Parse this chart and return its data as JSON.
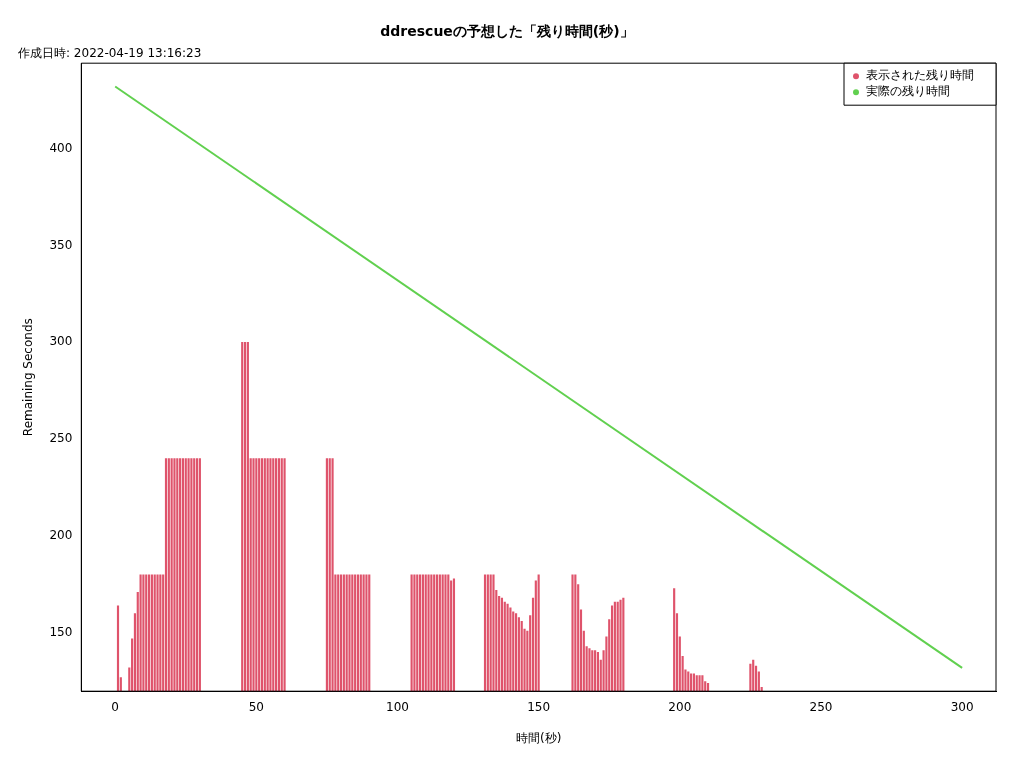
{
  "chart_data": {
    "type": "bar",
    "title": "ddrescueの予想した「残り時間(秒)」",
    "subtitle": "作成日時: 2022-04-19 13:16:23",
    "xlabel": "時間(秒)",
    "ylabel": "Remaining Seconds",
    "xlim": [
      -12,
      312
    ],
    "xticks": [
      0,
      50,
      100,
      150,
      200,
      250,
      300
    ],
    "ylim": [
      120,
      444
    ],
    "yticks": [
      150,
      200,
      250,
      300,
      350,
      400
    ],
    "grid": false,
    "legend": "top right",
    "series": [
      {
        "name": "表示された残り時間",
        "color": "#df536b",
        "x": [
          1,
          2,
          5,
          6,
          7,
          8,
          9,
          10,
          11,
          12,
          13,
          14,
          15,
          16,
          17,
          18,
          19,
          20,
          21,
          22,
          23,
          24,
          25,
          26,
          27,
          28,
          29,
          30,
          45,
          46,
          47,
          48,
          49,
          50,
          51,
          52,
          53,
          54,
          55,
          56,
          57,
          58,
          59,
          60,
          75,
          76,
          77,
          78,
          79,
          80,
          81,
          82,
          83,
          84,
          85,
          86,
          87,
          88,
          89,
          90,
          105,
          106,
          107,
          108,
          109,
          110,
          111,
          112,
          113,
          114,
          115,
          116,
          117,
          118,
          119,
          120,
          131,
          132,
          133,
          134,
          135,
          136,
          137,
          138,
          139,
          140,
          141,
          142,
          143,
          144,
          145,
          146,
          147,
          148,
          149,
          150,
          162,
          163,
          164,
          165,
          166,
          167,
          168,
          169,
          170,
          171,
          172,
          173,
          174,
          175,
          176,
          177,
          178,
          179,
          180,
          198,
          199,
          200,
          201,
          202,
          203,
          204,
          205,
          206,
          207,
          208,
          209,
          210,
          225,
          226,
          227,
          228,
          229
        ],
        "values": [
          164,
          127,
          132,
          147,
          160,
          171,
          180,
          180,
          180,
          180,
          180,
          180,
          180,
          180,
          180,
          240,
          240,
          240,
          240,
          240,
          240,
          240,
          240,
          240,
          240,
          240,
          240,
          240,
          300,
          300,
          300,
          240,
          240,
          240,
          240,
          240,
          240,
          240,
          240,
          240,
          240,
          240,
          240,
          240,
          240,
          240,
          240,
          180,
          180,
          180,
          180,
          180,
          180,
          180,
          180,
          180,
          180,
          180,
          180,
          180,
          180,
          180,
          180,
          180,
          180,
          180,
          180,
          180,
          180,
          180,
          180,
          180,
          180,
          180,
          177,
          178,
          180,
          180,
          180,
          180,
          172,
          169,
          168,
          166,
          165,
          163,
          161,
          160,
          158,
          156,
          152,
          151,
          159,
          168,
          177,
          180,
          180,
          180,
          175,
          162,
          151,
          143,
          142,
          141,
          141,
          140,
          136,
          141,
          148,
          157,
          164,
          166,
          166,
          167,
          168,
          173,
          160,
          148,
          138,
          131,
          130,
          129,
          129,
          128,
          128,
          128,
          125,
          124,
          134,
          136,
          133,
          130,
          122
        ]
      },
      {
        "name": "実際の残り時間",
        "type": "line",
        "color": "#61d04f",
        "x": [
          0,
          300
        ],
        "values": [
          432,
          132
        ]
      }
    ]
  }
}
